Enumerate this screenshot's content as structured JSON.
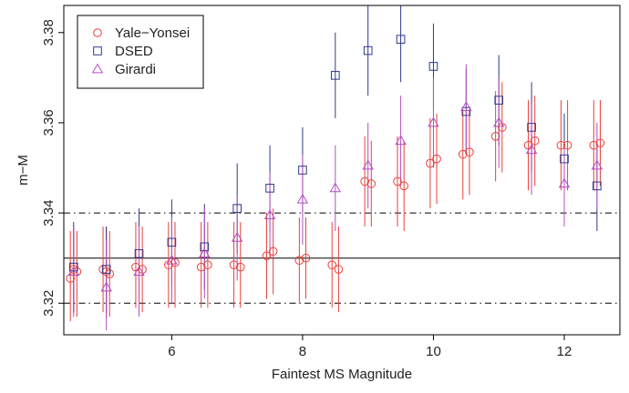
{
  "chart_data": {
    "type": "scatter",
    "xlabel": "Faintest MS Magnitude",
    "ylabel": "m−M",
    "xlim": [
      4.35,
      12.85
    ],
    "ylim": [
      3.313,
      3.386
    ],
    "x_ticks": [
      6,
      8,
      10,
      12
    ],
    "x_tick_labels": [
      "6",
      "8",
      "10",
      "12"
    ],
    "y_ticks": [
      3.32,
      3.34,
      3.36,
      3.38
    ],
    "y_tick_labels": [
      "3.32",
      "3.34",
      "3.36",
      "3.38"
    ],
    "reference_lines": [
      {
        "y": 3.33,
        "style": "solid"
      },
      {
        "y": 3.34,
        "style": "dashdot"
      },
      {
        "y": 3.32,
        "style": "dashdot"
      }
    ],
    "legend_position": "top-left",
    "grid": false,
    "series": [
      {
        "name": "Yale−Yonsei",
        "marker": "circle",
        "color": "#e8413c",
        "points": [
          {
            "x": 4.45,
            "y": 3.3255,
            "lo": 3.316,
            "hi": 3.336
          },
          {
            "x": 4.5,
            "y": 3.3275,
            "lo": 3.318,
            "hi": 3.337
          },
          {
            "x": 4.55,
            "y": 3.327,
            "lo": 3.317,
            "hi": 3.336
          },
          {
            "x": 4.95,
            "y": 3.3275,
            "lo": 3.318,
            "hi": 3.337
          },
          {
            "x": 5.0,
            "y": 3.327,
            "lo": 3.317,
            "hi": 3.337
          },
          {
            "x": 5.05,
            "y": 3.3265,
            "lo": 3.317,
            "hi": 3.336
          },
          {
            "x": 5.45,
            "y": 3.328,
            "lo": 3.319,
            "hi": 3.338
          },
          {
            "x": 5.55,
            "y": 3.3275,
            "lo": 3.318,
            "hi": 3.337
          },
          {
            "x": 5.95,
            "y": 3.3285,
            "lo": 3.319,
            "hi": 3.338
          },
          {
            "x": 6.05,
            "y": 3.329,
            "lo": 3.319,
            "hi": 3.338
          },
          {
            "x": 6.45,
            "y": 3.328,
            "lo": 3.319,
            "hi": 3.338
          },
          {
            "x": 6.55,
            "y": 3.3285,
            "lo": 3.319,
            "hi": 3.338
          },
          {
            "x": 6.95,
            "y": 3.3285,
            "lo": 3.319,
            "hi": 3.338
          },
          {
            "x": 7.05,
            "y": 3.328,
            "lo": 3.319,
            "hi": 3.338
          },
          {
            "x": 7.45,
            "y": 3.3305,
            "lo": 3.321,
            "hi": 3.34
          },
          {
            "x": 7.55,
            "y": 3.3315,
            "lo": 3.322,
            "hi": 3.341
          },
          {
            "x": 7.95,
            "y": 3.3295,
            "lo": 3.32,
            "hi": 3.339
          },
          {
            "x": 8.05,
            "y": 3.33,
            "lo": 3.321,
            "hi": 3.339
          },
          {
            "x": 8.45,
            "y": 3.3285,
            "lo": 3.319,
            "hi": 3.338
          },
          {
            "x": 8.55,
            "y": 3.3275,
            "lo": 3.318,
            "hi": 3.337
          },
          {
            "x": 8.95,
            "y": 3.347,
            "lo": 3.337,
            "hi": 3.357
          },
          {
            "x": 9.05,
            "y": 3.3465,
            "lo": 3.337,
            "hi": 3.356
          },
          {
            "x": 9.45,
            "y": 3.347,
            "lo": 3.337,
            "hi": 3.357
          },
          {
            "x": 9.55,
            "y": 3.346,
            "lo": 3.336,
            "hi": 3.356
          },
          {
            "x": 9.95,
            "y": 3.351,
            "lo": 3.341,
            "hi": 3.361
          },
          {
            "x": 10.05,
            "y": 3.352,
            "lo": 3.342,
            "hi": 3.362
          },
          {
            "x": 10.45,
            "y": 3.353,
            "lo": 3.343,
            "hi": 3.363
          },
          {
            "x": 10.55,
            "y": 3.3535,
            "lo": 3.344,
            "hi": 3.363
          },
          {
            "x": 10.95,
            "y": 3.357,
            "lo": 3.347,
            "hi": 3.367
          },
          {
            "x": 11.05,
            "y": 3.359,
            "lo": 3.349,
            "hi": 3.369
          },
          {
            "x": 11.45,
            "y": 3.355,
            "lo": 3.345,
            "hi": 3.365
          },
          {
            "x": 11.55,
            "y": 3.356,
            "lo": 3.346,
            "hi": 3.366
          },
          {
            "x": 11.95,
            "y": 3.355,
            "lo": 3.345,
            "hi": 3.365
          },
          {
            "x": 12.05,
            "y": 3.355,
            "lo": 3.345,
            "hi": 3.365
          },
          {
            "x": 12.45,
            "y": 3.355,
            "lo": 3.345,
            "hi": 3.365
          },
          {
            "x": 12.55,
            "y": 3.3555,
            "lo": 3.346,
            "hi": 3.365
          }
        ]
      },
      {
        "name": "DSED",
        "marker": "square",
        "color": "#2e3a8c",
        "points": [
          {
            "x": 4.5,
            "y": 3.328,
            "lo": 3.318,
            "hi": 3.338
          },
          {
            "x": 5.0,
            "y": 3.3275,
            "lo": 3.318,
            "hi": 3.337
          },
          {
            "x": 5.5,
            "y": 3.331,
            "lo": 3.321,
            "hi": 3.341
          },
          {
            "x": 6.0,
            "y": 3.3335,
            "lo": 3.324,
            "hi": 3.343
          },
          {
            "x": 6.5,
            "y": 3.3325,
            "lo": 3.323,
            "hi": 3.342
          },
          {
            "x": 7.0,
            "y": 3.341,
            "lo": 3.331,
            "hi": 3.351
          },
          {
            "x": 7.5,
            "y": 3.3455,
            "lo": 3.336,
            "hi": 3.355
          },
          {
            "x": 8.0,
            "y": 3.3495,
            "lo": 3.34,
            "hi": 3.359
          },
          {
            "x": 8.5,
            "y": 3.3705,
            "lo": 3.361,
            "hi": 3.38
          },
          {
            "x": 9.0,
            "y": 3.376,
            "lo": 3.366,
            "hi": 3.386
          },
          {
            "x": 9.5,
            "y": 3.3785,
            "lo": 3.369,
            "hi": 3.388
          },
          {
            "x": 10.0,
            "y": 3.3725,
            "lo": 3.363,
            "hi": 3.382
          },
          {
            "x": 10.5,
            "y": 3.3625,
            "lo": 3.353,
            "hi": 3.372
          },
          {
            "x": 11.0,
            "y": 3.365,
            "lo": 3.355,
            "hi": 3.375
          },
          {
            "x": 11.5,
            "y": 3.359,
            "lo": 3.349,
            "hi": 3.369
          },
          {
            "x": 12.0,
            "y": 3.352,
            "lo": 3.342,
            "hi": 3.362
          },
          {
            "x": 12.5,
            "y": 3.346,
            "lo": 3.336,
            "hi": 3.356
          }
        ]
      },
      {
        "name": "Girardi",
        "marker": "triangle",
        "color": "#b44fc4",
        "points": [
          {
            "x": 4.5,
            "y": 3.327,
            "lo": 3.317,
            "hi": 3.337
          },
          {
            "x": 5.0,
            "y": 3.3235,
            "lo": 3.314,
            "hi": 3.334
          },
          {
            "x": 5.5,
            "y": 3.327,
            "lo": 3.317,
            "hi": 3.337
          },
          {
            "x": 6.0,
            "y": 3.3295,
            "lo": 3.32,
            "hi": 3.339
          },
          {
            "x": 6.5,
            "y": 3.331,
            "lo": 3.321,
            "hi": 3.341
          },
          {
            "x": 7.0,
            "y": 3.3345,
            "lo": 3.325,
            "hi": 3.344
          },
          {
            "x": 7.5,
            "y": 3.3395,
            "lo": 3.33,
            "hi": 3.349
          },
          {
            "x": 8.0,
            "y": 3.343,
            "lo": 3.333,
            "hi": 3.353
          },
          {
            "x": 8.5,
            "y": 3.3455,
            "lo": 3.336,
            "hi": 3.355
          },
          {
            "x": 9.0,
            "y": 3.3505,
            "lo": 3.341,
            "hi": 3.36
          },
          {
            "x": 9.5,
            "y": 3.356,
            "lo": 3.346,
            "hi": 3.366
          },
          {
            "x": 10.0,
            "y": 3.36,
            "lo": 3.35,
            "hi": 3.37
          },
          {
            "x": 10.5,
            "y": 3.3635,
            "lo": 3.354,
            "hi": 3.373
          },
          {
            "x": 11.0,
            "y": 3.36,
            "lo": 3.35,
            "hi": 3.37
          },
          {
            "x": 11.5,
            "y": 3.354,
            "lo": 3.344,
            "hi": 3.364
          },
          {
            "x": 12.0,
            "y": 3.3465,
            "lo": 3.337,
            "hi": 3.356
          },
          {
            "x": 12.5,
            "y": 3.3505,
            "lo": 3.341,
            "hi": 3.36
          }
        ]
      }
    ]
  }
}
